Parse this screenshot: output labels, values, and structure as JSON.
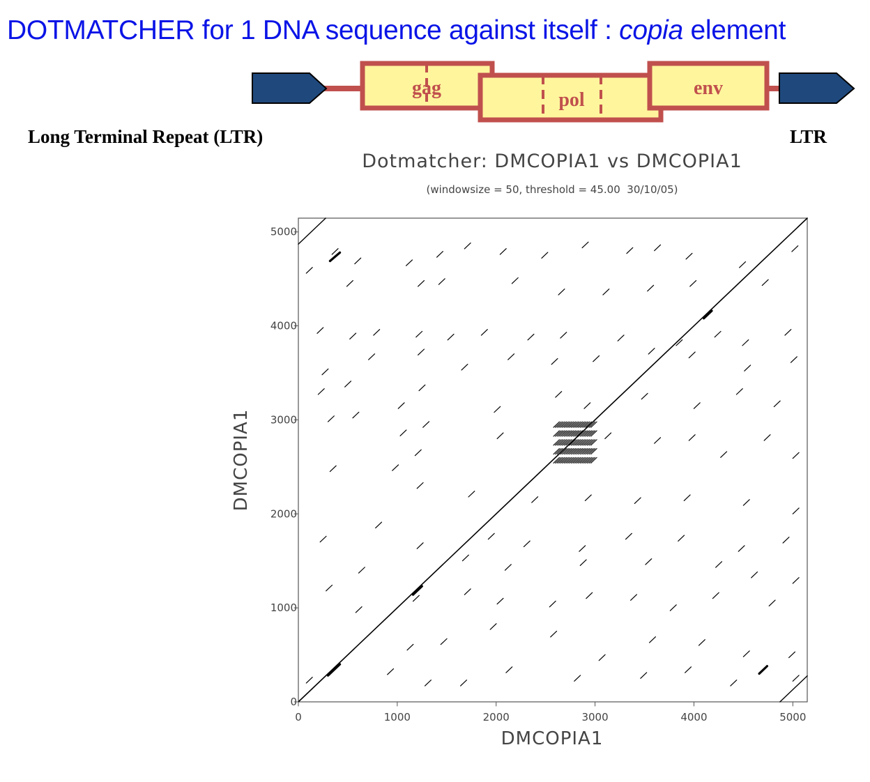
{
  "slide_title": {
    "prefix": "DOTMATCHER for 1 DNA sequence against itself : ",
    "italic": "copia",
    "suffix": " element"
  },
  "diagram": {
    "genes": [
      "gag",
      "pol",
      "env"
    ],
    "left_label": "Long Terminal Repeat (LTR)",
    "right_label": "LTR",
    "colors": {
      "ltr_fill": "#1f497d",
      "gene_fill": "#fff59d",
      "gene_border": "#c0504d"
    }
  },
  "chart_data": {
    "type": "scatter",
    "title": "Dotmatcher: DMCOPIA1 vs DMCOPIA1",
    "subtitle": "(windowsize = 50, threshold = 45.00  30/10/05)",
    "xlabel": "DMCOPIA1",
    "ylabel": "DMCOPIA1",
    "xlim": [
      0,
      5146
    ],
    "ylim": [
      0,
      5146
    ],
    "xticks": [
      0,
      1000,
      2000,
      3000,
      4000,
      5000
    ],
    "yticks": [
      0,
      1000,
      2000,
      3000,
      4000,
      5000
    ],
    "grid": false,
    "main_diagonal": [
      [
        0,
        0
      ],
      [
        5146,
        5146
      ]
    ],
    "ltr_repeat_diagonals": [
      {
        "name": "LTR-5prime-vs-3prime",
        "x": [
          0,
          276
        ],
        "y": [
          4870,
          5146
        ]
      },
      {
        "name": "LTR-3prime-vs-5prime",
        "x": [
          4870,
          5146
        ],
        "y": [
          0,
          276
        ]
      }
    ],
    "repeat_block": {
      "x": [
        2580,
        2960
      ],
      "y": [
        2540,
        2940
      ]
    },
    "bold_segments": [
      [
        1160,
        1140,
        1250,
        1230
      ],
      [
        300,
        280,
        420,
        400
      ],
      [
        4100,
        4080,
        4180,
        4160
      ],
      [
        320,
        4690,
        420,
        4780
      ],
      [
        4660,
        300,
        4740,
        380
      ]
    ],
    "short_matches": [
      [
        80,
        4560
      ],
      [
        340,
        4760
      ],
      [
        570,
        4660
      ],
      [
        1090,
        4640
      ],
      [
        1400,
        4730
      ],
      [
        1680,
        4820
      ],
      [
        2040,
        4760
      ],
      [
        2460,
        4720
      ],
      [
        2870,
        4830
      ],
      [
        3320,
        4770
      ],
      [
        3600,
        4800
      ],
      [
        3920,
        4710
      ],
      [
        4460,
        4620
      ],
      [
        4990,
        4790
      ],
      [
        490,
        4420
      ],
      [
        1210,
        4420
      ],
      [
        1420,
        4440
      ],
      [
        2160,
        4450
      ],
      [
        2630,
        4330
      ],
      [
        3080,
        4330
      ],
      [
        3530,
        4370
      ],
      [
        3960,
        4420
      ],
      [
        4690,
        4430
      ],
      [
        190,
        3920
      ],
      [
        520,
        3860
      ],
      [
        760,
        3900
      ],
      [
        1190,
        3880
      ],
      [
        1510,
        3850
      ],
      [
        1850,
        3900
      ],
      [
        2320,
        3850
      ],
      [
        2650,
        3870
      ],
      [
        3230,
        3840
      ],
      [
        3820,
        3790
      ],
      [
        4210,
        3880
      ],
      [
        4490,
        3790
      ],
      [
        4920,
        3900
      ],
      [
        240,
        3480
      ],
      [
        710,
        3640
      ],
      [
        1210,
        3690
      ],
      [
        1650,
        3530
      ],
      [
        2120,
        3640
      ],
      [
        2560,
        3590
      ],
      [
        2980,
        3620
      ],
      [
        3540,
        3700
      ],
      [
        3950,
        3660
      ],
      [
        4510,
        3520
      ],
      [
        4980,
        3610
      ],
      [
        200,
        3270
      ],
      [
        470,
        3350
      ],
      [
        1010,
        3120
      ],
      [
        1220,
        3310
      ],
      [
        1980,
        3080
      ],
      [
        2600,
        3240
      ],
      [
        2890,
        3120
      ],
      [
        3470,
        3220
      ],
      [
        4000,
        3120
      ],
      [
        4430,
        3270
      ],
      [
        4810,
        3140
      ],
      [
        300,
        2980
      ],
      [
        550,
        3020
      ],
      [
        1030,
        2830
      ],
      [
        1260,
        2920
      ],
      [
        1180,
        2620
      ],
      [
        2010,
        2800
      ],
      [
        3100,
        2800
      ],
      [
        3600,
        2750
      ],
      [
        3950,
        2780
      ],
      [
        4270,
        2600
      ],
      [
        4710,
        2780
      ],
      [
        5000,
        2590
      ],
      [
        320,
        2450
      ],
      [
        950,
        2460
      ],
      [
        1200,
        2270
      ],
      [
        1720,
        2180
      ],
      [
        2360,
        2120
      ],
      [
        2900,
        2140
      ],
      [
        3400,
        2110
      ],
      [
        3900,
        2140
      ],
      [
        4500,
        2090
      ],
      [
        5000,
        2000
      ],
      [
        220,
        1700
      ],
      [
        780,
        1850
      ],
      [
        1200,
        1630
      ],
      [
        1920,
        1730
      ],
      [
        2280,
        1650
      ],
      [
        2840,
        1600
      ],
      [
        3310,
        1730
      ],
      [
        3840,
        1710
      ],
      [
        4450,
        1600
      ],
      [
        4900,
        1690
      ],
      [
        610,
        1370
      ],
      [
        1660,
        1500
      ],
      [
        2090,
        1400
      ],
      [
        2850,
        1450
      ],
      [
        3510,
        1460
      ],
      [
        4220,
        1430
      ],
      [
        4580,
        1320
      ],
      [
        5000,
        1260
      ],
      [
        280,
        1180
      ],
      [
        580,
        950
      ],
      [
        880,
        880
      ],
      [
        1160,
        1070
      ],
      [
        1680,
        1140
      ],
      [
        2010,
        1040
      ],
      [
        2540,
        1010
      ],
      [
        2910,
        1100
      ],
      [
        3360,
        1080
      ],
      [
        3760,
        970
      ],
      [
        4190,
        1100
      ],
      [
        4760,
        1020
      ],
      [
        1100,
        550
      ],
      [
        1440,
        610
      ],
      [
        1940,
        770
      ],
      [
        2550,
        690
      ],
      [
        3040,
        440
      ],
      [
        3550,
        630
      ],
      [
        4050,
        600
      ],
      [
        4500,
        480
      ],
      [
        4960,
        470
      ],
      [
        80,
        200
      ],
      [
        900,
        290
      ],
      [
        1280,
        170
      ],
      [
        1640,
        170
      ],
      [
        2100,
        310
      ],
      [
        2790,
        220
      ],
      [
        3460,
        250
      ],
      [
        3910,
        310
      ],
      [
        4370,
        170
      ],
      [
        5000,
        220
      ]
    ],
    "colors": {
      "dots": "#000000",
      "frame": "#555555",
      "text": "#444444"
    }
  }
}
